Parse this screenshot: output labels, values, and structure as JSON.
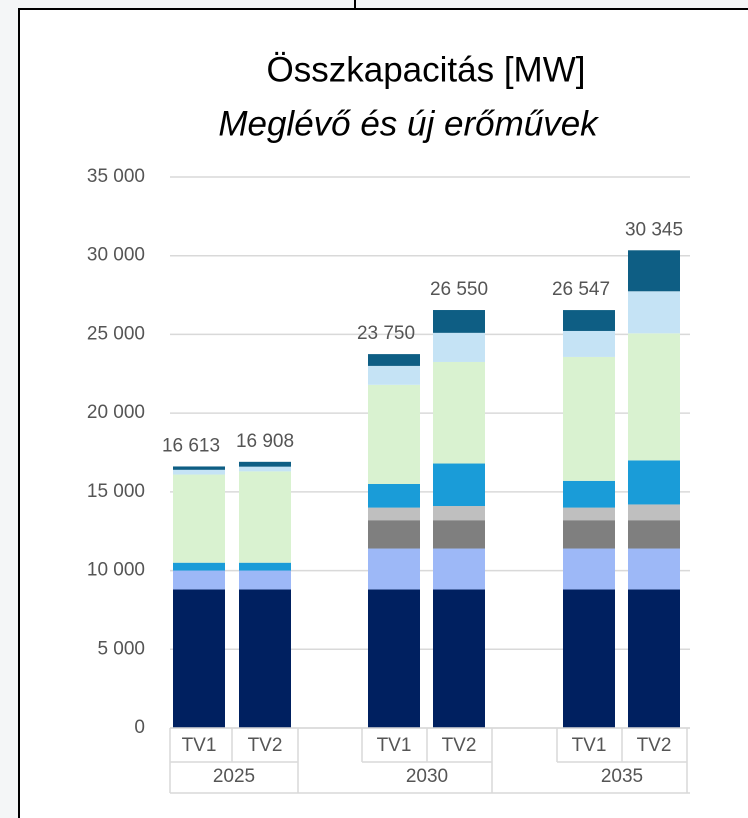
{
  "chart_data": {
    "type": "stacked_bar",
    "title": "Összkapacitás [MW]",
    "subtitle": "Meglévő és új erőművek",
    "categories": [
      "TV1",
      "TV2",
      "TV1",
      "TV2",
      "TV1",
      "TV2"
    ],
    "groups": [
      "2025",
      "2030",
      "2035"
    ],
    "series": [
      {
        "color": "#002060",
        "values": [
          8800,
          8800,
          8800,
          8800,
          8800,
          8800
        ]
      },
      {
        "color": "#9db8f7",
        "values": [
          1200,
          1200,
          2600,
          2600,
          2600,
          2600
        ]
      },
      {
        "color": "#7f7f7f",
        "values": [
          0,
          0,
          1800,
          1800,
          1800,
          1800
        ]
      },
      {
        "color": "#bfbfbf",
        "values": [
          0,
          0,
          800,
          900,
          800,
          1000
        ]
      },
      {
        "color": "#1a9cd8",
        "values": [
          500,
          500,
          1500,
          2700,
          1700,
          2800
        ]
      },
      {
        "color": "#d9f2d0",
        "values": [
          5600,
          5800,
          6300,
          6450,
          7870,
          8070
        ]
      },
      {
        "color": "#c5e3f5",
        "values": [
          300,
          300,
          1200,
          1850,
          1650,
          2670
        ]
      },
      {
        "color": "#0e5e84",
        "values": [
          213,
          308,
          750,
          1450,
          1327,
          2605
        ]
      }
    ],
    "totals": [
      16613,
      16908,
      23750,
      26550,
      26547,
      30345
    ],
    "total_labels": [
      "16 613",
      "16 908",
      "23 750",
      "26 550",
      "26 547",
      "30 345"
    ],
    "ylim": [
      0,
      35000
    ],
    "yticks": [
      0,
      {
        "value": 5000,
        "label": "5 000"
      },
      {
        "value": 10000,
        "label": "10 000"
      },
      {
        "value": 15000,
        "label": "15 000"
      },
      {
        "value": 20000,
        "label": "20 000"
      },
      {
        "value": 25000,
        "label": "25 000"
      },
      {
        "value": 30000,
        "label": "30 000"
      },
      {
        "value": 35000,
        "label": "35 000"
      }
    ],
    "grid": true
  }
}
